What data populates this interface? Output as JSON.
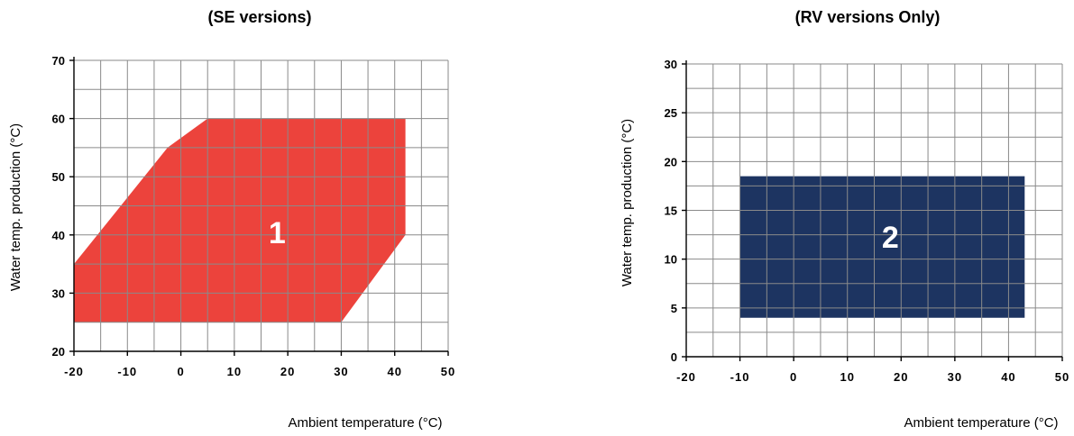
{
  "chart_data": [
    {
      "type": "area",
      "title": "(SE versions)",
      "xlabel": "Ambient temperature (°C)",
      "ylabel": "Water temp. production (°C)",
      "xlim": [
        -20,
        50
      ],
      "ylim": [
        20,
        70
      ],
      "x_ticks": [
        -20,
        -10,
        0,
        10,
        20,
        30,
        40,
        50
      ],
      "y_ticks": [
        20,
        30,
        40,
        50,
        60,
        70
      ],
      "x_grid_step": 5,
      "y_grid_step": 5,
      "grid": true,
      "region_color": "#ec433c",
      "region_label": "1",
      "region_label_at": [
        18,
        40
      ],
      "region_polygon": [
        [
          -20,
          25
        ],
        [
          -20,
          35
        ],
        [
          -2.5,
          55
        ],
        [
          5,
          60
        ],
        [
          42,
          60
        ],
        [
          42,
          40
        ],
        [
          30,
          25
        ]
      ]
    },
    {
      "type": "area",
      "title": "(RV versions Only)",
      "xlabel": "Ambient temperature (°C)",
      "ylabel": "Water temp. production (°C)",
      "xlim": [
        -20,
        50
      ],
      "ylim": [
        0,
        30
      ],
      "x_ticks": [
        -20,
        -10,
        0,
        10,
        20,
        30,
        40,
        50
      ],
      "y_ticks": [
        0,
        5,
        10,
        15,
        20,
        25,
        30
      ],
      "x_grid_step": 5,
      "y_grid_step": 2.5,
      "grid": true,
      "region_color": "#1d3461",
      "region_label": "2",
      "region_label_at": [
        18,
        12
      ],
      "region_polygon": [
        [
          -10,
          4
        ],
        [
          -10,
          18.5
        ],
        [
          43,
          18.5
        ],
        [
          43,
          4
        ]
      ]
    }
  ]
}
